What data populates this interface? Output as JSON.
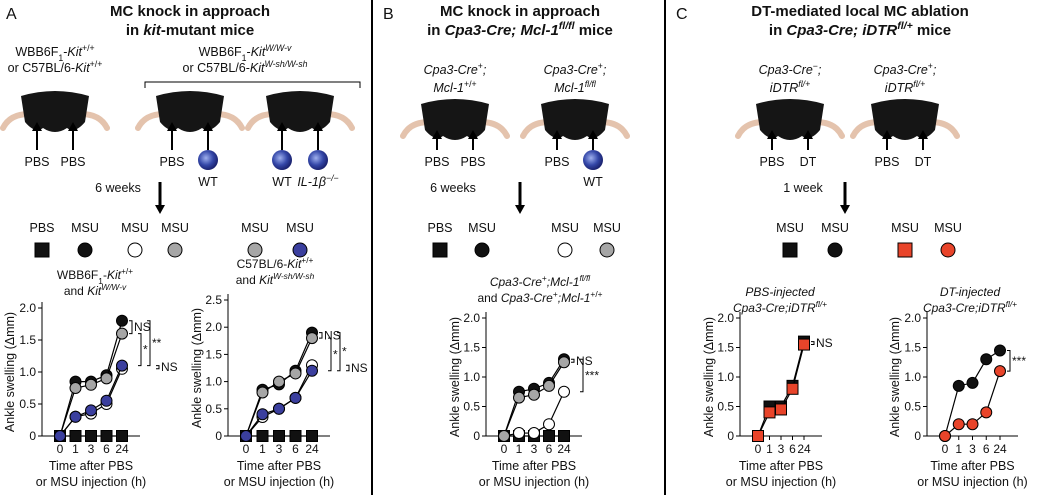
{
  "panels": [
    {
      "letter": "A",
      "title": [
        [
          "MC knock in approach"
        ],
        [
          "in ",
          {
            "t": "kit",
            "s": "i"
          },
          "-mutant mice"
        ]
      ],
      "groups": [
        {
          "label": [
            [
              "WBB6F",
              {
                "t": "1",
                "s": "sub"
              },
              "-",
              {
                "t": "Kit",
                "s": "i"
              },
              {
                "t": "+/+",
                "s": "sup"
              }
            ],
            [
              "or C57BL/6-",
              {
                "t": "Kit",
                "s": "i"
              },
              {
                "t": "+/+",
                "s": "sup"
              }
            ]
          ],
          "mice": [
            [
              {
                "text": [
                  "PBS"
                ],
                "cells": false
              },
              {
                "text": [
                  "PBS"
                ],
                "cells": false
              }
            ]
          ]
        },
        {
          "label": [
            [
              "WBB6F",
              {
                "t": "1",
                "s": "sub"
              },
              "-",
              {
                "t": "Kit",
                "s": "i"
              },
              {
                "t": "W/W-v",
                "s": "isup"
              }
            ],
            [
              "or C57BL/6-",
              {
                "t": "Kit",
                "s": "i"
              },
              {
                "t": "W-sh/W-sh",
                "s": "isup"
              }
            ]
          ],
          "mice": [
            [
              {
                "text": [
                  "PBS"
                ],
                "cells": false
              },
              {
                "text": [
                  "WT"
                ],
                "cells": true
              }
            ],
            [
              {
                "text": [
                  "WT"
                ],
                "cells": true
              },
              {
                "text": [
                  {
                    "t": "IL-1β",
                    "s": "i"
                  },
                  {
                    "t": "−/−",
                    "s": "isup"
                  }
                ],
                "cells": true
              }
            ]
          ]
        }
      ],
      "interval": "6 weeks",
      "legend": [
        {
          "text": "PBS",
          "marker": "square",
          "color": "#111111"
        },
        {
          "text": "MSU",
          "marker": "circle",
          "color": "#111111"
        },
        {
          "text": "MSU",
          "marker": "circle",
          "color": "#ffffff"
        },
        {
          "text": "MSU",
          "marker": "circle",
          "color": "#a6a6a6"
        },
        {
          "text": "MSU",
          "marker": "circle",
          "color": "#a6a6a6"
        },
        {
          "text": "MSU",
          "marker": "circle",
          "color": "#3b3f9e"
        }
      ]
    },
    {
      "letter": "B",
      "title": [
        [
          "MC knock in approach"
        ],
        [
          "in ",
          {
            "t": "Cpa3-Cre; Mcl-1",
            "s": "i"
          },
          {
            "t": "fl/fl",
            "s": "isup"
          },
          " mice"
        ]
      ],
      "groups": [
        {
          "label": [
            [
              {
                "t": "Cpa3-Cre",
                "s": "i"
              },
              {
                "t": "+",
                "s": "sup"
              },
              {
                "t": ";",
                "s": "i"
              }
            ],
            [
              {
                "t": "Mcl-1",
                "s": "i"
              },
              {
                "t": "+/+",
                "s": "sup"
              }
            ]
          ],
          "mice": [
            [
              {
                "text": [
                  "PBS"
                ],
                "cells": false
              },
              {
                "text": [
                  "PBS"
                ],
                "cells": false
              }
            ]
          ]
        },
        {
          "label": [
            [
              {
                "t": "Cpa3-Cre",
                "s": "i"
              },
              {
                "t": "+",
                "s": "sup"
              },
              {
                "t": ";",
                "s": "i"
              }
            ],
            [
              {
                "t": "Mcl-1",
                "s": "i"
              },
              {
                "t": "fl/fl",
                "s": "isup"
              }
            ]
          ],
          "mice": [
            [
              {
                "text": [
                  "PBS"
                ],
                "cells": false
              },
              {
                "text": [
                  "WT"
                ],
                "cells": true
              }
            ]
          ]
        }
      ],
      "interval": "6 weeks",
      "legend": [
        {
          "text": "PBS",
          "marker": "square",
          "color": "#111111"
        },
        {
          "text": "MSU",
          "marker": "circle",
          "color": "#111111"
        },
        {
          "text": "MSU",
          "marker": "circle",
          "color": "#ffffff"
        },
        {
          "text": "MSU",
          "marker": "circle",
          "color": "#a6a6a6"
        }
      ]
    },
    {
      "letter": "C",
      "title": [
        [
          "DT-mediated local MC ablation"
        ],
        [
          "in ",
          {
            "t": "Cpa3-Cre; iDTR",
            "s": "i"
          },
          {
            "t": "fl/+",
            "s": "isup"
          },
          " mice"
        ]
      ],
      "groups": [
        {
          "label": [
            [
              {
                "t": "Cpa3-Cre",
                "s": "i"
              },
              {
                "t": "−",
                "s": "sup"
              },
              {
                "t": ";",
                "s": "i"
              }
            ],
            [
              {
                "t": "iDTR",
                "s": "i"
              },
              {
                "t": "fl/+",
                "s": "isup"
              }
            ]
          ],
          "mice": [
            [
              {
                "text": [
                  "PBS"
                ],
                "cells": false
              },
              {
                "text": [
                  "DT"
                ],
                "cells": false
              }
            ]
          ]
        },
        {
          "label": [
            [
              {
                "t": "Cpa3-Cre",
                "s": "i"
              },
              {
                "t": "+",
                "s": "sup"
              },
              {
                "t": ";",
                "s": "i"
              }
            ],
            [
              {
                "t": "iDTR",
                "s": "i"
              },
              {
                "t": "fl/+",
                "s": "isup"
              }
            ]
          ],
          "mice": [
            [
              {
                "text": [
                  "PBS"
                ],
                "cells": false
              },
              {
                "text": [
                  "DT"
                ],
                "cells": false
              }
            ]
          ]
        }
      ],
      "interval": "1 week",
      "legend": [
        {
          "text": "MSU",
          "marker": "square",
          "color": "#111111"
        },
        {
          "text": "MSU",
          "marker": "circle",
          "color": "#111111"
        },
        {
          "text": "MSU",
          "marker": "square",
          "color": "#e8442a"
        },
        {
          "text": "MSU",
          "marker": "circle",
          "color": "#e8442a"
        }
      ]
    }
  ],
  "chart_data": [
    {
      "type": "line",
      "title": [
        [
          "WBB6F",
          {
            "t": "1",
            "s": "sub"
          },
          "-",
          {
            "t": "Kit",
            "s": "i"
          },
          {
            "t": "+/+",
            "s": "sup"
          }
        ],
        [
          "and ",
          {
            "t": "Kit",
            "s": "i"
          },
          {
            "t": "W/W-v",
            "s": "isup"
          }
        ]
      ],
      "ylabel": "Ankle swelling (Δmm)",
      "xlabel": [
        "Time after PBS",
        "or MSU injection (h)"
      ],
      "categories": [
        "0",
        "1",
        "3",
        "6",
        "24"
      ],
      "ylim": [
        0,
        2
      ],
      "yticks": [
        0,
        0.5,
        {
          "value": 1,
          "label": "1.0"
        },
        1.5,
        {
          "value": 2,
          "label": "2.0"
        }
      ],
      "series": [
        {
          "marker": "square",
          "color": "#111111",
          "values": [
            0,
            0,
            0,
            0,
            0
          ]
        },
        {
          "marker": "circle",
          "color": "#111111",
          "values": [
            0,
            0.85,
            0.85,
            0.95,
            1.8
          ]
        },
        {
          "marker": "circle",
          "color": "#ffffff",
          "values": [
            0,
            0.3,
            0.35,
            0.5,
            1.05
          ]
        },
        {
          "marker": "circle",
          "color": "#a6a6a6",
          "values": [
            0,
            0.75,
            0.8,
            0.9,
            1.6
          ]
        },
        {
          "marker": "circle",
          "color": "#3b3f9e",
          "values": [
            0,
            0.3,
            0.4,
            0.55,
            1.1
          ]
        }
      ],
      "annotations": [
        {
          "text": "NS",
          "series": [
            1,
            3
          ]
        },
        {
          "text": "*",
          "series": [
            3,
            4
          ]
        },
        {
          "text": "**",
          "series": [
            1,
            4
          ]
        },
        {
          "text": "NS",
          "series": [
            4,
            2
          ]
        }
      ]
    },
    {
      "type": "line",
      "title": [
        [
          "C57BL/6-",
          {
            "t": "Kit",
            "s": "i"
          },
          {
            "t": "+/+",
            "s": "sup"
          }
        ],
        [
          "and ",
          {
            "t": "Kit",
            "s": "i"
          },
          {
            "t": "W-sh/W-sh",
            "s": "isup"
          }
        ]
      ],
      "ylabel": "Ankle swelling (Δmm)",
      "xlabel": [
        "Time after PBS",
        "or MSU injection (h)"
      ],
      "categories": [
        "0",
        "1",
        "3",
        "6",
        "24"
      ],
      "ylim": [
        0,
        2.5
      ],
      "yticks": [
        0,
        0.5,
        {
          "value": 1,
          "label": "1.0"
        },
        1.5,
        {
          "value": 2,
          "label": "2.0"
        },
        2.5
      ],
      "series": [
        {
          "marker": "square",
          "color": "#111111",
          "values": [
            0,
            0,
            0,
            0,
            0
          ]
        },
        {
          "marker": "circle",
          "color": "#111111",
          "values": [
            0,
            0.85,
            0.95,
            1.2,
            1.9
          ]
        },
        {
          "marker": "circle",
          "color": "#ffffff",
          "values": [
            0,
            0.35,
            0.5,
            0.7,
            1.3
          ]
        },
        {
          "marker": "circle",
          "color": "#a6a6a6",
          "values": [
            0,
            0.8,
            1.0,
            1.15,
            1.8
          ]
        },
        {
          "marker": "circle",
          "color": "#3b3f9e",
          "values": [
            0,
            0.4,
            0.5,
            0.7,
            1.2
          ]
        }
      ],
      "annotations": [
        {
          "text": "NS",
          "series": [
            1,
            3
          ]
        },
        {
          "text": "*",
          "series": [
            3,
            4
          ]
        },
        {
          "text": "*",
          "series": [
            1,
            4
          ]
        },
        {
          "text": "NS",
          "series": [
            4,
            2
          ]
        }
      ]
    },
    {
      "type": "line",
      "title": [
        [
          {
            "t": "Cpa3-Cre",
            "s": "i"
          },
          {
            "t": "+",
            "s": "sup"
          },
          {
            "t": ";Mcl-1",
            "s": "i"
          },
          {
            "t": "fl/fl",
            "s": "isup"
          }
        ],
        [
          "and ",
          {
            "t": "Cpa3-Cre",
            "s": "i"
          },
          {
            "t": "+",
            "s": "sup"
          },
          {
            "t": ";Mcl-1",
            "s": "i"
          },
          {
            "t": "+/+",
            "s": "sup"
          }
        ]
      ],
      "ylabel": "Ankle swelling (Δmm)",
      "xlabel": [
        "Time after PBS",
        "or MSU injection (h)"
      ],
      "categories": [
        "0",
        "1",
        "3",
        "6",
        "24"
      ],
      "ylim": [
        0,
        2
      ],
      "yticks": [
        0,
        0.5,
        {
          "value": 1,
          "label": "1.0"
        },
        1.5,
        {
          "value": 2,
          "label": "2.0"
        }
      ],
      "series": [
        {
          "marker": "square",
          "color": "#111111",
          "values": [
            0,
            0,
            0,
            0,
            0
          ]
        },
        {
          "marker": "circle",
          "color": "#111111",
          "values": [
            0,
            0.75,
            0.8,
            0.9,
            1.3
          ]
        },
        {
          "marker": "circle",
          "color": "#ffffff",
          "values": [
            0,
            0.05,
            0.05,
            0.2,
            0.75
          ]
        },
        {
          "marker": "circle",
          "color": "#a6a6a6",
          "values": [
            0,
            0.65,
            0.7,
            0.85,
            1.25
          ]
        }
      ],
      "annotations": [
        {
          "text": "NS",
          "series": [
            1,
            3
          ]
        },
        {
          "text": "***",
          "series": [
            1,
            2
          ]
        }
      ]
    },
    {
      "type": "line",
      "title": [
        [
          {
            "t": "PBS-injected",
            "s": "i"
          }
        ],
        [
          {
            "t": "Cpa3-Cre;iDTR",
            "s": "i"
          },
          {
            "t": "fl/+",
            "s": "isup"
          }
        ]
      ],
      "ylabel": "Ankle swelling (Δmm)",
      "xlabel": [
        "Time after PBS",
        "or MSU injection (h)"
      ],
      "categories": [
        "0",
        "1",
        "3",
        "6",
        "24"
      ],
      "ylim": [
        0,
        2
      ],
      "yticks": [
        0,
        0.5,
        {
          "value": 1,
          "label": "1.0"
        },
        1.5,
        {
          "value": 2,
          "label": "2.0"
        }
      ],
      "series": [
        {
          "marker": "square",
          "color": "#111111",
          "values": [
            0,
            0.5,
            0.5,
            0.85,
            1.6
          ]
        },
        {
          "marker": "square",
          "color": "#e8442a",
          "values": [
            0,
            0.4,
            0.45,
            0.8,
            1.55
          ]
        }
      ],
      "annotations": [
        {
          "text": "NS",
          "series": [
            0,
            1
          ]
        }
      ]
    },
    {
      "type": "line",
      "title": [
        [
          {
            "t": "DT-injected",
            "s": "i"
          }
        ],
        [
          {
            "t": "Cpa3-Cre;iDTR",
            "s": "i"
          },
          {
            "t": "fl/+",
            "s": "isup"
          }
        ]
      ],
      "ylabel": "Ankle swelling (Δmm)",
      "xlabel": [
        "Time after PBS",
        "or MSU injection (h)"
      ],
      "categories": [
        "0",
        "1",
        "3",
        "6",
        "24"
      ],
      "ylim": [
        0,
        2
      ],
      "yticks": [
        0,
        0.5,
        {
          "value": 1,
          "label": "1.0"
        },
        1.5,
        {
          "value": 2,
          "label": "2.0"
        }
      ],
      "series": [
        {
          "marker": "circle",
          "color": "#111111",
          "values": [
            0,
            0.85,
            0.9,
            1.3,
            1.45
          ]
        },
        {
          "marker": "circle",
          "color": "#e8442a",
          "values": [
            0,
            0.2,
            0.2,
            0.4,
            1.1
          ]
        }
      ],
      "annotations": [
        {
          "text": "***",
          "series": [
            0,
            1
          ]
        }
      ]
    }
  ]
}
